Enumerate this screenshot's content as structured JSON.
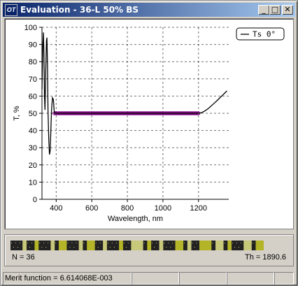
{
  "window": {
    "title": "Evaluation - 36-L 50% BS",
    "icon_text": "OT",
    "controls": {
      "minimize": "_",
      "maximize": "□",
      "close": "✕"
    }
  },
  "chart_data": {
    "type": "line",
    "xlabel": "Wavelength, nm",
    "ylabel": "T, %",
    "xlim": [
      320,
      1370
    ],
    "ylim": [
      0,
      100
    ],
    "x_ticks": [
      400,
      600,
      800,
      1000,
      1200
    ],
    "y_ticks": [
      0,
      10,
      20,
      30,
      40,
      50,
      60,
      70,
      80,
      90,
      100
    ],
    "grid": true,
    "legend": {
      "position": "top-right",
      "entries": [
        "Ts 0°"
      ]
    },
    "series": [
      {
        "name": "Ts 0°",
        "color": "#000000",
        "points": [
          [
            320,
            64
          ],
          [
            325,
            90
          ],
          [
            328,
            97
          ],
          [
            331,
            85
          ],
          [
            334,
            60
          ],
          [
            337,
            52
          ],
          [
            341,
            73
          ],
          [
            345,
            92
          ],
          [
            348,
            94
          ],
          [
            351,
            78
          ],
          [
            354,
            52
          ],
          [
            358,
            35
          ],
          [
            362,
            26
          ],
          [
            366,
            28
          ],
          [
            370,
            40
          ],
          [
            374,
            52
          ],
          [
            379,
            59
          ],
          [
            384,
            58
          ],
          [
            388,
            52
          ],
          [
            392,
            50
          ],
          [
            400,
            50
          ],
          [
            420,
            50
          ],
          [
            450,
            50
          ],
          [
            500,
            50
          ],
          [
            600,
            50
          ],
          [
            700,
            50
          ],
          [
            800,
            50
          ],
          [
            900,
            50
          ],
          [
            1000,
            50
          ],
          [
            1100,
            50
          ],
          [
            1150,
            50
          ],
          [
            1200,
            50
          ],
          [
            1215,
            50.3
          ],
          [
            1230,
            51
          ],
          [
            1245,
            52
          ],
          [
            1260,
            53.2
          ],
          [
            1275,
            54.6
          ],
          [
            1290,
            56
          ],
          [
            1305,
            57.5
          ],
          [
            1320,
            59
          ],
          [
            1335,
            60.5
          ],
          [
            1350,
            62
          ],
          [
            1360,
            63
          ]
        ]
      },
      {
        "name": "targets",
        "color": "#800080",
        "markers": "circle",
        "x_range": [
          390,
          1200
        ],
        "count": 140,
        "value": 50
      }
    ]
  },
  "design": {
    "n_label": "N = 36",
    "th_label": "Th = 1890.6",
    "layer_colors": [
      "#222222",
      "#c8c87a",
      "#b4b428"
    ],
    "layer_pattern": [
      3,
      1,
      2,
      1,
      3,
      1,
      1,
      2,
      3,
      1,
      1,
      2,
      2,
      1,
      3,
      1,
      2,
      3,
      1,
      1,
      2,
      1,
      3,
      2,
      1,
      1,
      2,
      3,
      1,
      2,
      1,
      1,
      3,
      2,
      1,
      2
    ]
  },
  "status": {
    "merit": "Merit function = 6.614068E-003",
    "cells": [
      "",
      "",
      "",
      ""
    ]
  }
}
